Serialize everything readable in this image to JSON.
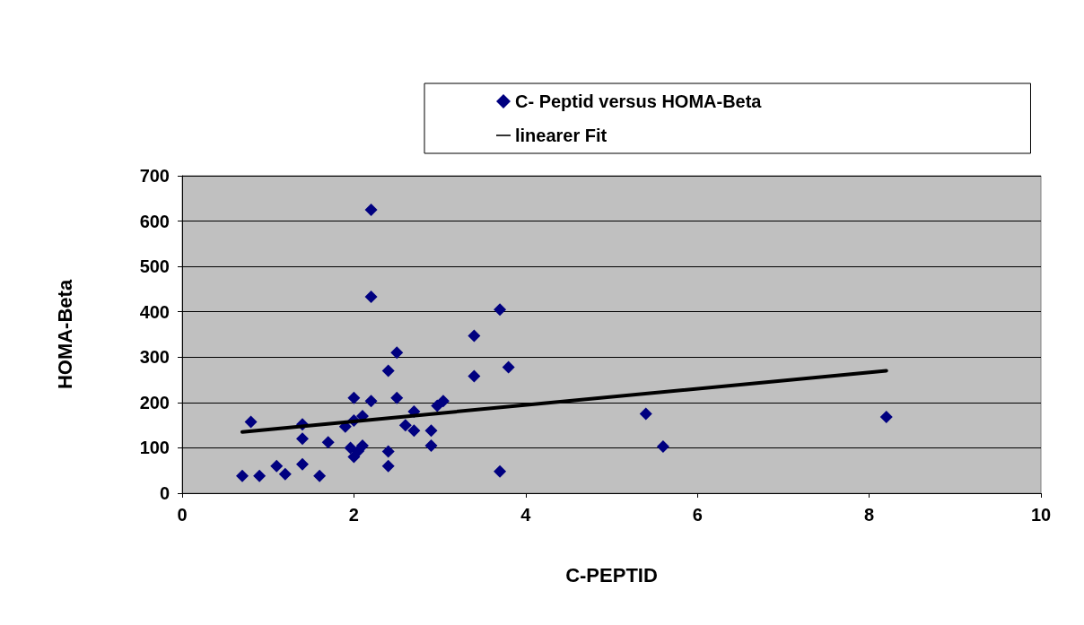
{
  "chart_data": {
    "type": "scatter",
    "xlabel": "C-PEPTID",
    "ylabel": "HOMA-Beta",
    "xlim": [
      0,
      10
    ],
    "xticks": [
      0,
      2,
      4,
      6,
      8,
      10
    ],
    "ylim": [
      0,
      700
    ],
    "yticks": [
      0,
      100,
      200,
      300,
      400,
      500,
      600,
      700
    ],
    "grid": "y",
    "legend": "top",
    "marker": "diamond",
    "series": [
      {
        "name": "C- Peptid versus HOMA-Beta",
        "color": "#000080",
        "x": [
          0.7,
          0.9,
          0.8,
          1.1,
          1.2,
          1.4,
          1.4,
          1.4,
          1.6,
          1.7,
          1.9,
          2.0,
          2.0,
          1.96,
          2.05,
          2.0,
          2.1,
          2.1,
          2.2,
          2.2,
          2.2,
          2.4,
          2.4,
          2.4,
          2.5,
          2.5,
          2.6,
          2.7,
          2.7,
          2.9,
          2.9,
          3.04,
          2.97,
          3.4,
          3.4,
          3.7,
          3.7,
          3.8,
          5.4,
          5.6,
          8.2
        ],
        "values": [
          38,
          38,
          157,
          60,
          42,
          152,
          120,
          64,
          38,
          112,
          147,
          210,
          160,
          100,
          93,
          80,
          170,
          105,
          625,
          433,
          203,
          270,
          92,
          60,
          310,
          210,
          150,
          180,
          138,
          138,
          105,
          203,
          193,
          347,
          258,
          405,
          48,
          278,
          175,
          103,
          168
        ]
      },
      {
        "name": "linearer Fit",
        "type": "line",
        "color": "#000000",
        "line_style": "solid",
        "marker": "none",
        "x": [
          0.7,
          8.2
        ],
        "values": [
          135,
          270
        ]
      }
    ]
  }
}
